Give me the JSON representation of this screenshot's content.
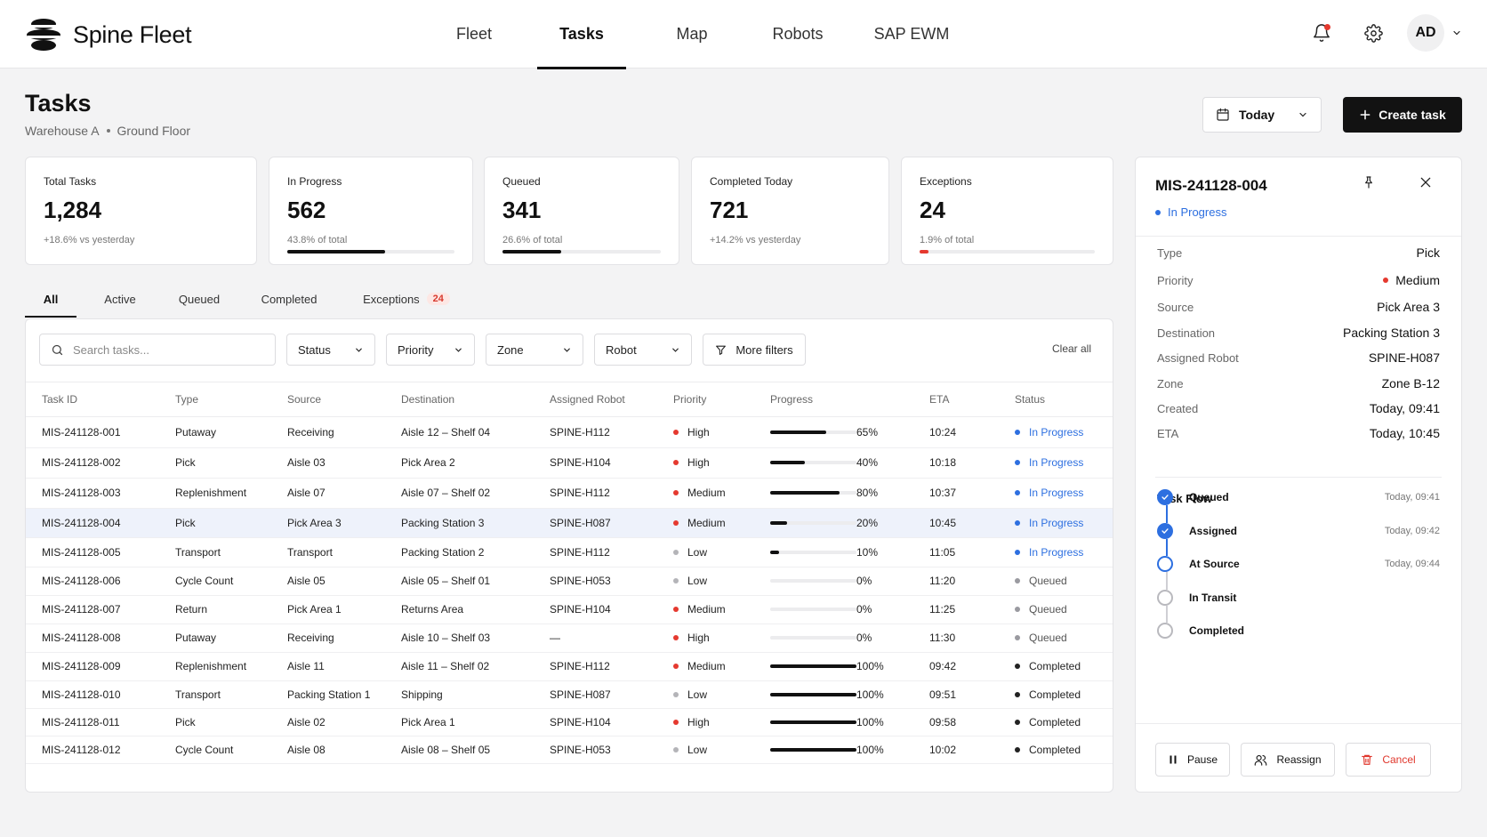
{
  "app": {
    "name": "Spine Fleet"
  },
  "nav": {
    "items": [
      {
        "label": "Fleet",
        "active": false
      },
      {
        "label": "Tasks",
        "active": true
      },
      {
        "label": "Map",
        "active": false
      },
      {
        "label": "Robots",
        "active": false
      },
      {
        "label": "SAP EWM",
        "active": false
      }
    ],
    "icons": [
      "bell-icon",
      "gear-icon"
    ],
    "avatar_initials": "AD"
  },
  "header": {
    "title": "Tasks",
    "breadcrumb": [
      "Warehouse A",
      "Ground Floor"
    ],
    "date_filter": "Today",
    "create_label": "Create task"
  },
  "kpis": [
    {
      "label": "Total Tasks",
      "value": "1,284",
      "sub": "+18.6% vs yesterday",
      "bar": null
    },
    {
      "label": "In Progress",
      "value": "562",
      "sub": "43.8% of total",
      "bar": 0.583
    },
    {
      "label": "Queued",
      "value": "341",
      "sub": "26.6% of total",
      "bar": 0.37
    },
    {
      "label": "Completed Today",
      "value": "721",
      "sub": "+14.2% vs yesterday",
      "bar": null
    },
    {
      "label": "Exceptions",
      "value": "24",
      "sub": "1.9% of total",
      "bar": 0.05,
      "bar_color": "#e5392f"
    }
  ],
  "tabs": [
    {
      "label": "All",
      "active": true
    },
    {
      "label": "Active",
      "active": false
    },
    {
      "label": "Queued",
      "active": false
    },
    {
      "label": "Completed",
      "active": false
    },
    {
      "label": "Exceptions",
      "active": false,
      "badge": "24"
    }
  ],
  "filters": {
    "search_placeholder": "Search tasks...",
    "dropdowns": [
      "Status",
      "Priority",
      "Zone",
      "Robot"
    ],
    "more_label": "More filters",
    "clear_label": "Clear all"
  },
  "table": {
    "columns": [
      "Task ID",
      "Type",
      "Source",
      "Destination",
      "Assigned Robot",
      "Priority",
      "Progress",
      "",
      "ETA",
      "Status"
    ],
    "rows": [
      {
        "id": "MIS-241128-001",
        "type": "Putaway",
        "source": "Receiving",
        "destination": "Aisle 12 – Shelf 04",
        "robot": "SPINE-H112",
        "priority": "High",
        "progress": 65,
        "progress_label": "65%",
        "eta": "10:24",
        "status": "In Progress"
      },
      {
        "id": "MIS-241128-002",
        "type": "Pick",
        "source": "Aisle 03",
        "destination": "Pick Area 2",
        "robot": "SPINE-H104",
        "priority": "High",
        "progress": 40,
        "progress_label": "40%",
        "eta": "10:18",
        "status": "In Progress"
      },
      {
        "id": "MIS-241128-003",
        "type": "Replenishment",
        "source": "Aisle 07",
        "destination": "Aisle 07 – Shelf 02",
        "robot": "SPINE-H112",
        "priority": "Medium",
        "progress": 80,
        "progress_label": "80%",
        "eta": "10:37",
        "status": "In Progress"
      },
      {
        "id": "MIS-241128-004",
        "type": "Pick",
        "source": "Pick Area 3",
        "destination": "Packing Station 3",
        "robot": "SPINE-H087",
        "priority": "Medium",
        "progress": 20,
        "progress_label": "20%",
        "eta": "10:45",
        "status": "In Progress",
        "selected": true
      },
      {
        "id": "MIS-241128-005",
        "type": "Transport",
        "source": "Transport",
        "destination": "Packing Station 2",
        "robot": "SPINE-H112",
        "priority": "Low",
        "progress": 10,
        "progress_label": "10%",
        "eta": "11:05",
        "status": "In Progress"
      },
      {
        "id": "MIS-241128-006",
        "type": "Cycle Count",
        "source": "Aisle 05",
        "destination": "Aisle 05 – Shelf 01",
        "robot": "SPINE-H053",
        "priority": "Low",
        "progress": 0,
        "progress_label": "0%",
        "eta": "11:20",
        "status": "Queued"
      },
      {
        "id": "MIS-241128-007",
        "type": "Return",
        "source": "Pick Area 1",
        "destination": "Returns Area",
        "robot": "SPINE-H104",
        "priority": "Medium",
        "progress": 0,
        "progress_label": "0%",
        "eta": "11:25",
        "status": "Queued"
      },
      {
        "id": "MIS-241128-008",
        "type": "Putaway",
        "source": "Receiving",
        "destination": "Aisle 10 – Shelf 03",
        "robot": "—",
        "priority": "High",
        "progress": 0,
        "progress_label": "0%",
        "eta": "11:30",
        "status": "Queued"
      },
      {
        "id": "MIS-241128-009",
        "type": "Replenishment",
        "source": "Aisle 11",
        "destination": "Aisle 11 – Shelf 02",
        "robot": "SPINE-H112",
        "priority": "Medium",
        "progress": 100,
        "progress_label": "100%",
        "eta": "09:42",
        "status": "Completed"
      },
      {
        "id": "MIS-241128-010",
        "type": "Transport",
        "source": "Packing Station 1",
        "destination": "Shipping",
        "robot": "SPINE-H087",
        "priority": "Low",
        "progress": 100,
        "progress_label": "100%",
        "eta": "09:51",
        "status": "Completed"
      },
      {
        "id": "MIS-241128-011",
        "type": "Pick",
        "source": "Aisle 02",
        "destination": "Pick Area 1",
        "robot": "SPINE-H104",
        "priority": "High",
        "progress": 100,
        "progress_label": "100%",
        "eta": "09:58",
        "status": "Completed"
      },
      {
        "id": "MIS-241128-012",
        "type": "Cycle Count",
        "source": "Aisle 08",
        "destination": "Aisle 08 – Shelf 05",
        "robot": "SPINE-H053",
        "priority": "Low",
        "progress": 100,
        "progress_label": "100%",
        "eta": "10:02",
        "status": "Completed"
      }
    ]
  },
  "detail": {
    "title": "MIS-241128-004",
    "status": "In Progress",
    "fields": [
      {
        "key": "Type",
        "value": "Pick"
      },
      {
        "key": "Priority",
        "value": "Medium",
        "dot": true
      },
      {
        "key": "Source",
        "value": "Pick Area 3"
      },
      {
        "key": "Destination",
        "value": "Packing Station 3"
      },
      {
        "key": "Assigned Robot",
        "value": "SPINE-H087"
      },
      {
        "key": "Zone",
        "value": "Zone B-12"
      },
      {
        "key": "Created",
        "value": "Today, 09:41"
      },
      {
        "key": "ETA",
        "value": "Today, 10:45"
      }
    ],
    "flow_title": "Task Flow",
    "flow": [
      {
        "label": "Queued",
        "time": "Today, 09:41",
        "state": "done"
      },
      {
        "label": "Assigned",
        "time": "Today, 09:42",
        "state": "done"
      },
      {
        "label": "At Source",
        "time": "Today, 09:44",
        "state": "current"
      },
      {
        "label": "In Transit",
        "time": "",
        "state": "pending"
      },
      {
        "label": "Completed",
        "time": "",
        "state": "pending"
      }
    ],
    "actions": {
      "pause": "Pause",
      "reassign": "Reassign",
      "cancel": "Cancel"
    }
  },
  "colors": {
    "accent_blue": "#2d6fe0",
    "priority_high": "#e5392f",
    "priority_medium": "#e5392f",
    "priority_low": "#b4b4b8",
    "status_queued": "#9a9aa0",
    "status_completed": "#222222",
    "selected_row": "#eef2fb"
  }
}
